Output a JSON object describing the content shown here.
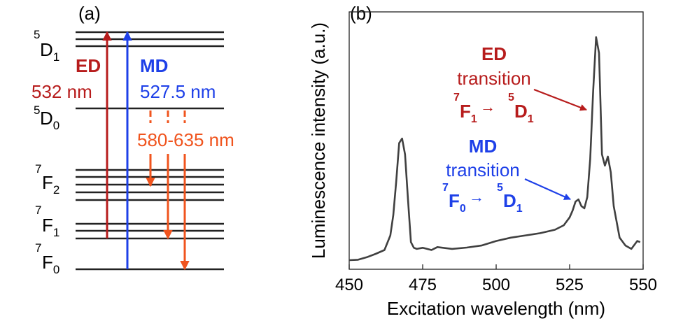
{
  "panel_a": {
    "label": "(a)",
    "levels": [
      {
        "name": "D",
        "sup": "5",
        "sub": "1",
        "lines": 3
      },
      {
        "name": "D",
        "sup": "5",
        "sub": "0",
        "lines": 1
      },
      {
        "name": "F",
        "sup": "7",
        "sub": "2",
        "lines": 5
      },
      {
        "name": "F",
        "sup": "7",
        "sub": "1",
        "lines": 3
      },
      {
        "name": "F",
        "sup": "7",
        "sub": "0",
        "lines": 1
      }
    ],
    "ed_label": "ED",
    "ed_wavelength": "532 nm",
    "md_label": "MD",
    "md_wavelength": "527.5 nm",
    "emission_label": "580-635 nm"
  },
  "panel_b": {
    "label": "(b)",
    "ed_annotation": {
      "title": "ED",
      "line2": "transition",
      "from_letter": "F",
      "from_sup": "7",
      "from_sub": "1",
      "to_letter": "D",
      "to_sup": "5",
      "to_sub": "1"
    },
    "md_annotation": {
      "title": "MD",
      "line2": "transition",
      "from_letter": "F",
      "from_sup": "7",
      "from_sub": "0",
      "to_letter": "D",
      "to_sup": "5",
      "to_sub": "1"
    }
  },
  "colors": {
    "ed": "#b71c1c",
    "md": "#1e40e8",
    "emission": "#f0541e",
    "line": "#404040"
  },
  "chart_data": {
    "type": "line",
    "title": "",
    "xlabel": "Excitation wavelength (nm)",
    "ylabel": "Luminescence intensity (a.u.)",
    "xlim": [
      450,
      550
    ],
    "ylim": [
      0,
      1
    ],
    "xticks": [
      450,
      475,
      500,
      525,
      550
    ],
    "grid": false,
    "x": [
      450,
      453,
      456,
      459,
      462,
      464,
      465,
      466,
      467,
      468,
      469,
      470,
      471,
      472,
      473,
      475,
      478,
      480,
      485,
      490,
      495,
      500,
      505,
      510,
      515,
      520,
      523,
      525,
      526,
      527,
      528,
      529,
      530,
      531,
      532,
      533,
      534,
      535,
      536,
      537,
      538,
      539,
      540,
      542,
      544,
      546,
      548,
      549
    ],
    "y": [
      0.0,
      0.002,
      0.013,
      0.028,
      0.045,
      0.11,
      0.2,
      0.35,
      0.52,
      0.54,
      0.47,
      0.27,
      0.08,
      0.055,
      0.05,
      0.055,
      0.045,
      0.058,
      0.05,
      0.056,
      0.065,
      0.085,
      0.1,
      0.11,
      0.12,
      0.135,
      0.155,
      0.19,
      0.22,
      0.26,
      0.27,
      0.24,
      0.23,
      0.28,
      0.45,
      0.75,
      0.99,
      0.92,
      0.47,
      0.42,
      0.46,
      0.39,
      0.24,
      0.1,
      0.065,
      0.05,
      0.085,
      0.08
    ]
  }
}
